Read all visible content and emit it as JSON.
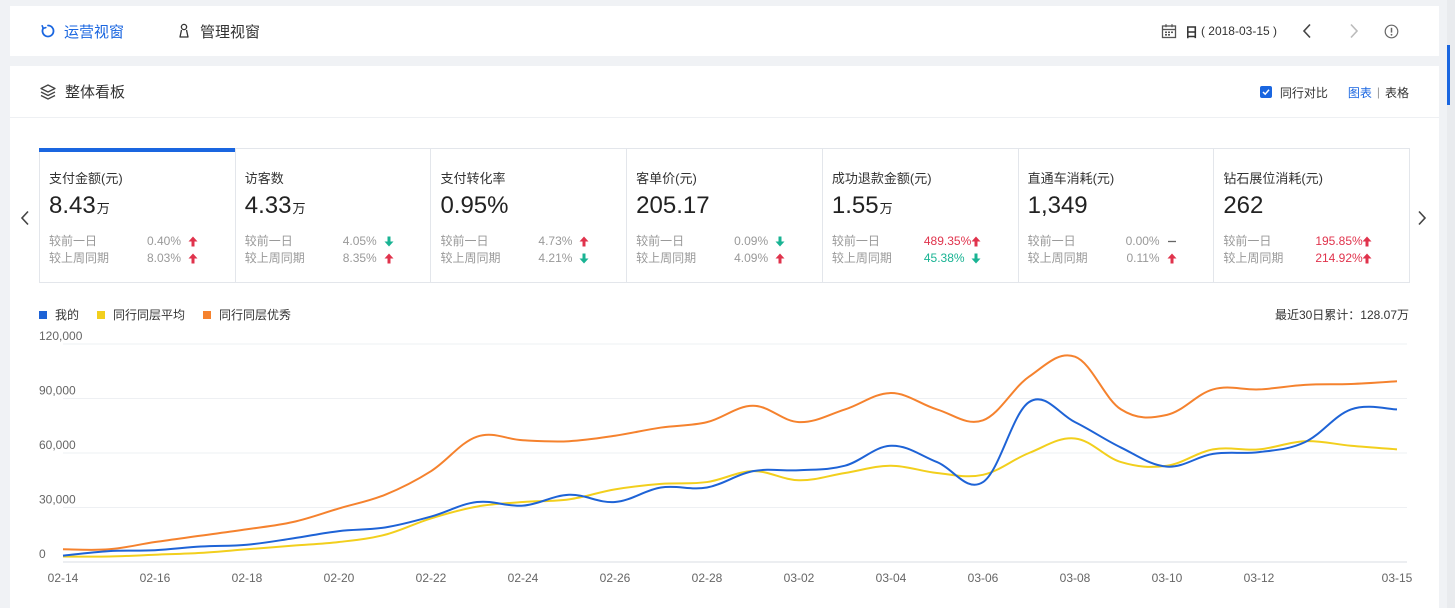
{
  "tabs": [
    {
      "label": "运营视窗",
      "active": true,
      "icon": "ops-icon"
    },
    {
      "label": "管理视窗",
      "active": false,
      "icon": "manage-icon"
    }
  ],
  "date": {
    "type": "日",
    "value": "( 2018-03-15 )"
  },
  "panel": {
    "title": "整体看板",
    "compare_label": "同行对比",
    "compare_checked": true,
    "view_chart": "图表",
    "view_table": "表格",
    "view_sep": "|"
  },
  "colors": {
    "accent": "#1a66e0",
    "up": "#e0334c",
    "down": "#19b393",
    "mine": "#1e63d6",
    "avg": "#f2cf1d",
    "excellent": "#f5822e"
  },
  "metrics": [
    {
      "title": "支付金额(元)",
      "value": "8.43",
      "unit": "万",
      "active": true,
      "r1_label": "较前一日",
      "r1_pct": "0.40%",
      "r1_dir": "up",
      "r1_hl": false,
      "r2_label": "较上周同期",
      "r2_pct": "8.03%",
      "r2_dir": "up",
      "r2_hl": false
    },
    {
      "title": "访客数",
      "value": "4.33",
      "unit": "万",
      "active": false,
      "r1_label": "较前一日",
      "r1_pct": "4.05%",
      "r1_dir": "down",
      "r1_hl": false,
      "r2_label": "较上周同期",
      "r2_pct": "8.35%",
      "r2_dir": "up",
      "r2_hl": false
    },
    {
      "title": "支付转化率",
      "value": "0.95%",
      "unit": "",
      "active": false,
      "r1_label": "较前一日",
      "r1_pct": "4.73%",
      "r1_dir": "up",
      "r1_hl": false,
      "r2_label": "较上周同期",
      "r2_pct": "4.21%",
      "r2_dir": "down",
      "r2_hl": false
    },
    {
      "title": "客单价(元)",
      "value": "205.17",
      "unit": "",
      "active": false,
      "r1_label": "较前一日",
      "r1_pct": "0.09%",
      "r1_dir": "down",
      "r1_hl": false,
      "r2_label": "较上周同期",
      "r2_pct": "4.09%",
      "r2_dir": "up",
      "r2_hl": false
    },
    {
      "title": "成功退款金额(元)",
      "value": "1.55",
      "unit": "万",
      "active": false,
      "r1_label": "较前一日",
      "r1_pct": "489.35%",
      "r1_dir": "up",
      "r1_hl": true,
      "r2_label": "较上周同期",
      "r2_pct": "45.38%",
      "r2_dir": "down",
      "r2_hl": true
    },
    {
      "title": "直通车消耗(元)",
      "value": "1,349",
      "unit": "",
      "active": false,
      "r1_label": "较前一日",
      "r1_pct": "0.00%",
      "r1_dir": "flat",
      "r1_hl": false,
      "r2_label": "较上周同期",
      "r2_pct": "0.11%",
      "r2_dir": "up",
      "r2_hl": false
    },
    {
      "title": "钻石展位消耗(元)",
      "value": "262",
      "unit": "",
      "active": false,
      "r1_label": "较前一日",
      "r1_pct": "195.85%",
      "r1_dir": "up",
      "r1_hl": true,
      "r2_label": "较上周同期",
      "r2_pct": "214.92%",
      "r2_dir": "up",
      "r2_hl": true
    }
  ],
  "cumulative": "最近30日累计：128.07万",
  "chart_data": {
    "type": "line",
    "x": [
      "02-14",
      "02-15",
      "02-16",
      "02-17",
      "02-18",
      "02-19",
      "02-20",
      "02-21",
      "02-22",
      "02-23",
      "02-24",
      "02-25",
      "02-26",
      "02-27",
      "02-28",
      "03-01",
      "03-02",
      "03-03",
      "03-04",
      "03-05",
      "03-06",
      "03-07",
      "03-08",
      "03-09",
      "03-10",
      "03-11",
      "03-12",
      "03-13",
      "03-14",
      "03-15"
    ],
    "xticks": [
      "02-14",
      "02-16",
      "02-18",
      "02-20",
      "02-22",
      "02-24",
      "02-26",
      "02-28",
      "03-02",
      "03-04",
      "03-06",
      "03-08",
      "03-10",
      "03-12",
      "03-15"
    ],
    "yticks": [
      "0",
      "30,000",
      "60,000",
      "90,000",
      "120,000"
    ],
    "ylim": [
      0,
      120000
    ],
    "series": [
      {
        "name": "我的",
        "color": "#1e63d6",
        "values": [
          3500,
          6000,
          6500,
          8500,
          9500,
          13000,
          17000,
          19000,
          25000,
          33000,
          31000,
          37000,
          33000,
          41000,
          41000,
          50000,
          50500,
          53000,
          64000,
          55000,
          44000,
          88000,
          77000,
          63000,
          52500,
          59500,
          60500,
          66000,
          84000,
          84000
        ]
      },
      {
        "name": "同行同层平均",
        "color": "#f2cf1d",
        "values": [
          3000,
          3000,
          4000,
          5000,
          7000,
          9000,
          11000,
          15000,
          24000,
          30500,
          33000,
          34500,
          40000,
          43000,
          44000,
          50000,
          45000,
          49000,
          53000,
          49000,
          48000,
          60000,
          68000,
          55000,
          53000,
          62000,
          62000,
          66500,
          64000,
          62000
        ]
      },
      {
        "name": "同行同层优秀",
        "color": "#f5822e",
        "values": [
          7000,
          7000,
          11000,
          14500,
          18000,
          22000,
          29500,
          37000,
          50000,
          69000,
          67000,
          66500,
          69500,
          74000,
          77000,
          86000,
          77000,
          84000,
          93000,
          84000,
          78000,
          102000,
          113000,
          84000,
          81000,
          95000,
          95000,
          97500,
          98000,
          99500
        ]
      }
    ]
  }
}
